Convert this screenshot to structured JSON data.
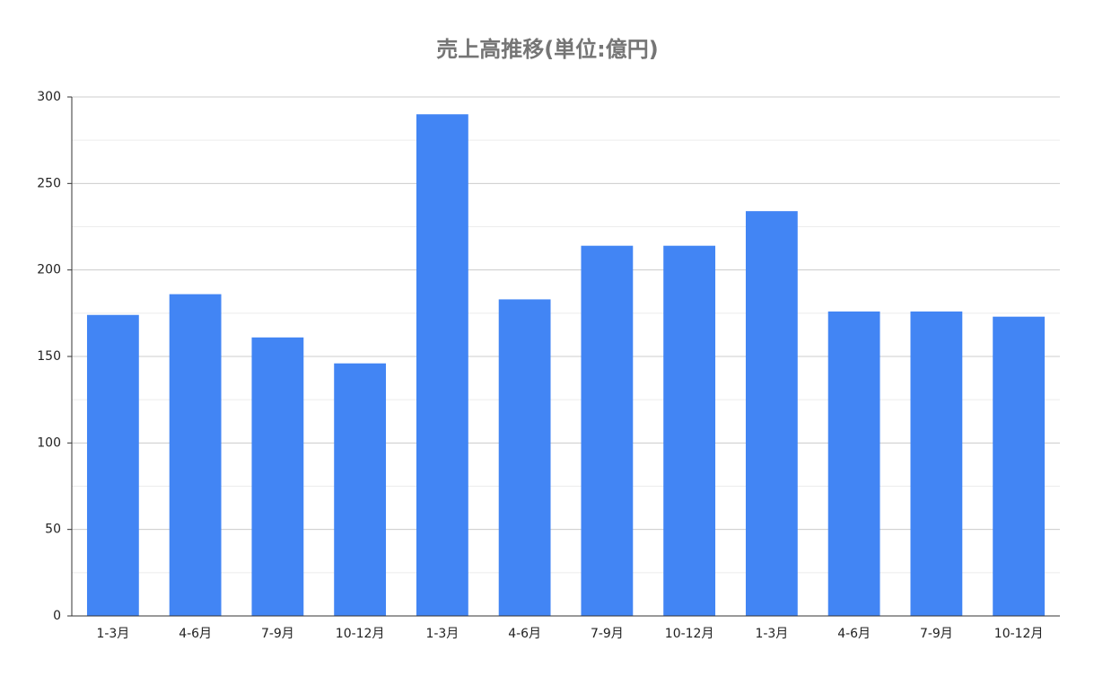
{
  "chart_data": {
    "type": "bar",
    "title": "売上高推移(単位:億円)",
    "categories": [
      "1-3月",
      "4-6月",
      "7-9月",
      "10-12月",
      "1-3月",
      "4-6月",
      "7-9月",
      "10-12月",
      "1-3月",
      "4-6月",
      "7-9月",
      "10-12月"
    ],
    "values": [
      174,
      186,
      161,
      146,
      290,
      183,
      214,
      214,
      234,
      176,
      176,
      173
    ],
    "color": "#4285f4",
    "ylim": [
      0,
      300
    ],
    "yticks": [
      0,
      50,
      100,
      150,
      200,
      250,
      300
    ],
    "minor_yticks": [
      25,
      75,
      125,
      175,
      225,
      275
    ],
    "grid": true
  }
}
